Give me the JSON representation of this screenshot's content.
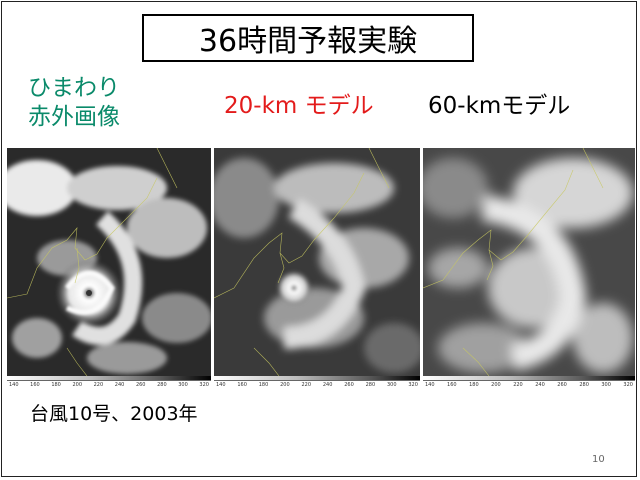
{
  "slide": {
    "title": "36時間予報実験",
    "labels": {
      "himawari_line1": "ひまわり",
      "himawari_line2": "赤外画像",
      "model_20km": "20-km モデル",
      "model_60km": "60-kmモデル"
    },
    "colors": {
      "himawari": "#0a8a6a",
      "model_20km": "#e31b1b",
      "model_60km": "#000000"
    },
    "scale_ticks": [
      "140",
      "160",
      "180",
      "200",
      "220",
      "240",
      "260",
      "280",
      "300",
      "320"
    ],
    "caption": "台風10号、2003年",
    "page_number": "10"
  }
}
